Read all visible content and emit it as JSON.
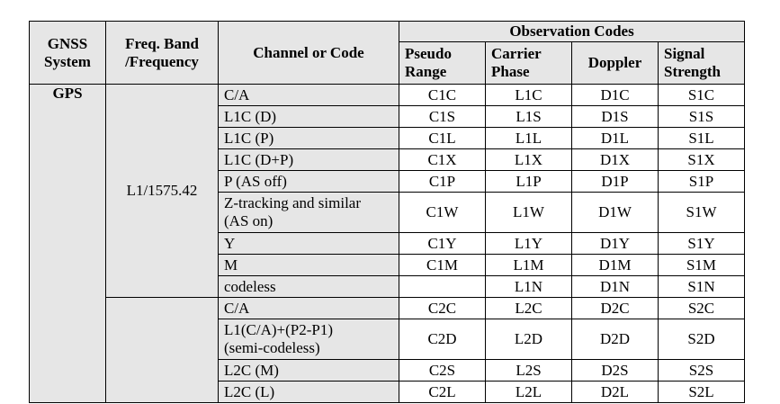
{
  "header": {
    "system": [
      "GNSS",
      "System"
    ],
    "freq": [
      "Freq. Band",
      "/Frequency"
    ],
    "channel": "Channel or Code",
    "obs_group": "Observation Codes",
    "pseudo": [
      "Pseudo",
      "Range"
    ],
    "carrier": [
      "Carrier",
      "Phase"
    ],
    "doppler": "Doppler",
    "signal": [
      "Signal",
      "Strength"
    ]
  },
  "system_gps": "GPS",
  "band_l1": "L1/1575.42",
  "l1_rows": [
    {
      "channel": "C/A",
      "pr": "C1C",
      "cp": "L1C",
      "dp": "D1C",
      "ss": "S1C"
    },
    {
      "channel": "L1C (D)",
      "pr": "C1S",
      "cp": "L1S",
      "dp": "D1S",
      "ss": "S1S"
    },
    {
      "channel": "L1C (P)",
      "pr": "C1L",
      "cp": "L1L",
      "dp": "D1L",
      "ss": "S1L"
    },
    {
      "channel": "L1C (D+P)",
      "pr": "C1X",
      "cp": "L1X",
      "dp": "D1X",
      "ss": "S1X"
    },
    {
      "channel": "P (AS off)",
      "pr": "C1P",
      "cp": "L1P",
      "dp": "D1P",
      "ss": "S1P"
    },
    {
      "channel_l1": "Z-tracking and similar",
      "channel_l2": "(AS on)",
      "pr": "C1W",
      "cp": "L1W",
      "dp": "D1W",
      "ss": "S1W"
    },
    {
      "channel": "Y",
      "pr": "C1Y",
      "cp": "L1Y",
      "dp": "D1Y",
      "ss": "S1Y"
    },
    {
      "channel": "M",
      "pr": "C1M",
      "cp": "L1M",
      "dp": "D1M",
      "ss": "S1M"
    },
    {
      "channel": "codeless",
      "pr": "",
      "cp": "L1N",
      "dp": "D1N",
      "ss": "S1N"
    }
  ],
  "l2_rows": [
    {
      "channel": "C/A",
      "pr": "C2C",
      "cp": "L2C",
      "dp": "D2C",
      "ss": "S2C"
    },
    {
      "channel_l1": "L1(C/A)+(P2-P1)",
      "channel_l2": "(semi-codeless)",
      "pr": "C2D",
      "cp": "L2D",
      "dp": "D2D",
      "ss": "S2D"
    },
    {
      "channel": "L2C (M)",
      "pr": "C2S",
      "cp": "L2S",
      "dp": "D2S",
      "ss": "S2S"
    },
    {
      "channel": "L2C (L)",
      "pr": "C2L",
      "cp": "L2L",
      "dp": "D2L",
      "ss": "S2L"
    }
  ]
}
